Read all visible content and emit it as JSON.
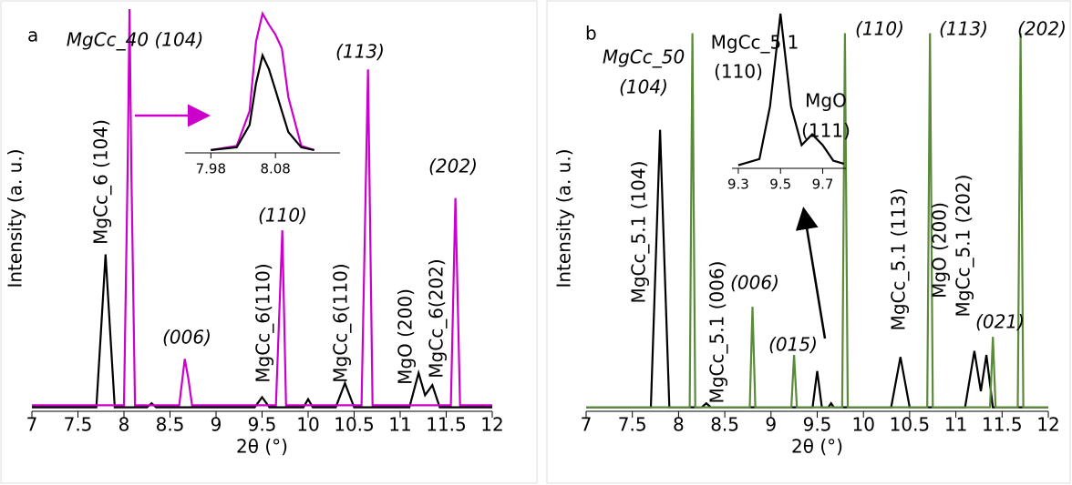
{
  "chart_data": [
    {
      "type": "line",
      "panel_label": "a",
      "x_label": "2θ (°)",
      "y_label": "Intensity (a. u.)",
      "xlim": [
        7,
        12
      ],
      "ylim": [
        0,
        100
      ],
      "xticks": [
        7,
        7.5,
        8,
        8.5,
        9,
        9.5,
        10,
        10.5,
        11,
        11.5,
        12
      ],
      "series": [
        {
          "color": "#000000",
          "x": [
            7,
            7.7,
            7.75,
            7.8,
            7.85,
            7.9,
            8.25,
            8.3,
            8.35,
            9.42,
            9.5,
            9.58,
            9.95,
            10.0,
            10.05,
            10.3,
            10.4,
            10.5,
            11.1,
            11.2,
            11.27,
            11.35,
            11.43,
            12
          ],
          "values": [
            1,
            1,
            20,
            39,
            20,
            1,
            1,
            2,
            1,
            1,
            3.5,
            1,
            1,
            3,
            1,
            1,
            7,
            1,
            1,
            9.5,
            4,
            6.5,
            1,
            1
          ]
        },
        {
          "color": "#cc00cc",
          "x": [
            7,
            8.0,
            8.04,
            8.06,
            8.08,
            8.12,
            8.6,
            8.66,
            8.7,
            8.74,
            9.65,
            9.72,
            9.76,
            10.58,
            10.65,
            10.7,
            11.55,
            11.6,
            11.65,
            12
          ],
          "values": [
            1.5,
            1.5,
            60,
            100,
            60,
            1.5,
            1.5,
            13,
            8,
            1.5,
            1.5,
            45,
            1.5,
            1.5,
            85,
            1.5,
            1.5,
            53,
            1.5,
            1.5
          ]
        }
      ],
      "annotations": [
        {
          "text": "MgCc_40 (104)",
          "color": "#cc00cc",
          "italic": true
        },
        {
          "text": "(113)",
          "color": "#cc00cc",
          "italic": true
        },
        {
          "text": "(110)",
          "color": "#cc00cc",
          "italic": true
        },
        {
          "text": "(006)",
          "color": "#cc00cc",
          "italic": true
        },
        {
          "text": "(202)",
          "color": "#cc00cc",
          "italic": true
        },
        {
          "text": "MgCc_6 (104)",
          "color": "#000000",
          "italic": false
        },
        {
          "text": "MgCc_6(110)",
          "color": "#000000",
          "italic": false
        },
        {
          "text": "MgCc_6(110)",
          "color": "#000000",
          "italic": false
        },
        {
          "text": "MgO (200)",
          "color": "#000000",
          "italic": false
        },
        {
          "text": "MgCc_6(202)",
          "color": "#000000",
          "italic": false
        }
      ],
      "inset": {
        "xlim": [
          7.94,
          8.18
        ],
        "ylim": [
          0,
          100
        ],
        "xticks": [
          7.98,
          8.08
        ],
        "series": [
          {
            "color": "#cc00cc",
            "x": [
              7.98,
              8.02,
              8.04,
              8.05,
              8.06,
              8.07,
              8.08,
              8.09,
              8.1,
              8.12,
              8.14
            ],
            "values": [
              2,
              5,
              30,
              80,
              100,
              92,
              85,
              75,
              40,
              5,
              2
            ]
          },
          {
            "color": "#000000",
            "x": [
              7.98,
              8.02,
              8.04,
              8.05,
              8.06,
              8.07,
              8.08,
              8.09,
              8.1,
              8.12,
              8.14
            ],
            "values": [
              2,
              4,
              20,
              50,
              70,
              60,
              45,
              30,
              15,
              4,
              2
            ]
          }
        ]
      }
    },
    {
      "type": "line",
      "panel_label": "b",
      "x_label": "2θ (°)",
      "y_label": "Intensity (a. u.)",
      "xlim": [
        7,
        12
      ],
      "ylim": [
        0,
        100
      ],
      "xticks": [
        7,
        7.5,
        8,
        8.5,
        9,
        9.5,
        10,
        10.5,
        11,
        11.5,
        12
      ],
      "series": [
        {
          "color": "#000000",
          "x": [
            7,
            7.7,
            7.75,
            7.8,
            7.85,
            7.9,
            8.25,
            8.3,
            8.35,
            9.45,
            9.5,
            9.55,
            9.62,
            9.65,
            9.68,
            10.3,
            10.4,
            10.5,
            11.1,
            11.2,
            11.27,
            11.33,
            11.4,
            12
          ],
          "values": [
            1,
            1,
            35,
            70,
            35,
            1,
            1,
            2,
            1,
            1,
            10,
            1,
            1,
            2,
            1,
            1,
            13.5,
            1,
            1,
            15,
            5,
            14,
            1,
            1
          ]
        },
        {
          "color": "#5a8a3a",
          "x": [
            7,
            8.12,
            8.15,
            8.18,
            8.77,
            8.8,
            8.83,
            9.22,
            9.25,
            9.28,
            9.77,
            9.8,
            9.83,
            10.69,
            10.72,
            10.75,
            11.37,
            11.4,
            11.43,
            11.67,
            11.7,
            11.73,
            12
          ],
          "values": [
            1,
            1,
            94,
            1,
            1,
            26,
            1,
            1,
            14,
            1,
            1,
            94,
            1,
            1,
            94,
            1,
            1,
            18.5,
            1,
            1,
            94,
            1,
            1
          ]
        }
      ],
      "annotations": [
        {
          "text": "MgCc_50",
          "color": "#4f7a32",
          "italic": true
        },
        {
          "text": "(104)",
          "color": "#4f7a32",
          "italic": true
        },
        {
          "text": "(110)",
          "color": "#4f7a32",
          "italic": true
        },
        {
          "text": "(113)",
          "color": "#4f7a32",
          "italic": true
        },
        {
          "text": "(202)",
          "color": "#4f7a32",
          "italic": true
        },
        {
          "text": "(006)",
          "color": "#4f7a32",
          "italic": true
        },
        {
          "text": "(015)",
          "color": "#4f7a32",
          "italic": true
        },
        {
          "text": "(021)",
          "color": "#4f7a32",
          "italic": true
        },
        {
          "text": "MgCc_5.1 (104)",
          "color": "#000000",
          "italic": false
        },
        {
          "text": "MgCc_5.1 (006)",
          "color": "#000000",
          "italic": false
        },
        {
          "text": "MgCc_5.1 (113)",
          "color": "#000000",
          "italic": false
        },
        {
          "text": "MgO (200)",
          "color": "#000000",
          "italic": false
        },
        {
          "text": "MgCc_5.1 (202)",
          "color": "#000000",
          "italic": false
        },
        {
          "text": "MgCc_5.1",
          "color": "#000000",
          "italic": false
        },
        {
          "text": "(110)",
          "color": "#000000",
          "italic": false
        },
        {
          "text": "MgO",
          "color": "#000000",
          "italic": false
        },
        {
          "text": "(111)",
          "color": "#000000",
          "italic": false
        }
      ],
      "inset": {
        "xlim": [
          9.27,
          9.81
        ],
        "ylim": [
          0,
          100
        ],
        "xticks": [
          9.3,
          9.5,
          9.7
        ],
        "series": [
          {
            "color": "#000000",
            "x": [
              9.3,
              9.4,
              9.45,
              9.5,
              9.55,
              9.6,
              9.65,
              9.7,
              9.75,
              9.8
            ],
            "values": [
              2,
              6,
              40,
              100,
              40,
              15,
              22,
              15,
              5,
              3
            ]
          }
        ]
      }
    }
  ]
}
